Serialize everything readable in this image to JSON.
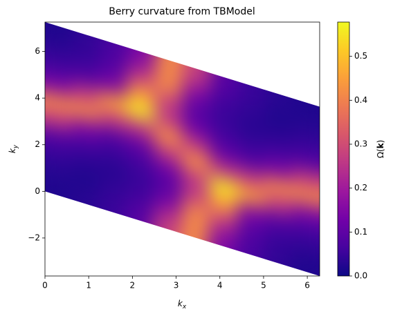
{
  "chart_data": {
    "type": "heatmap",
    "title": "Berry curvature from TBModel",
    "xlabel": [
      "k",
      "x"
    ],
    "ylabel": [
      "k",
      "y"
    ],
    "colorbar_label": [
      "Ω(",
      "k",
      ")"
    ],
    "origin": [
      0,
      0
    ],
    "b1": [
      6.283,
      -3.63
    ],
    "b2": [
      0,
      7.26
    ],
    "z": [
      [
        0.02,
        0.03,
        0.05,
        0.09,
        0.27,
        0.41,
        0.15,
        0.07,
        0.04,
        0.02
      ],
      [
        0.03,
        0.02,
        0.04,
        0.06,
        0.15,
        0.41,
        0.27,
        0.09,
        0.05,
        0.04
      ],
      [
        0.05,
        0.035,
        0.03,
        0.05,
        0.09,
        0.27,
        0.45,
        0.15,
        0.09,
        0.065
      ],
      [
        0.09,
        0.065,
        0.05,
        0.065,
        0.12,
        0.26,
        0.56,
        0.45,
        0.27,
        0.15
      ],
      [
        0.27,
        0.15,
        0.09,
        0.11,
        0.26,
        0.43,
        0.26,
        0.27,
        0.41,
        0.41
      ],
      [
        0.41,
        0.41,
        0.27,
        0.26,
        0.43,
        0.26,
        0.11,
        0.09,
        0.15,
        0.27
      ],
      [
        0.15,
        0.27,
        0.45,
        0.56,
        0.26,
        0.12,
        0.065,
        0.05,
        0.065,
        0.09
      ],
      [
        0.065,
        0.09,
        0.15,
        0.45,
        0.27,
        0.09,
        0.05,
        0.03,
        0.035,
        0.05
      ],
      [
        0.04,
        0.05,
        0.09,
        0.27,
        0.41,
        0.15,
        0.06,
        0.04,
        0.02,
        0.03
      ],
      [
        0.02,
        0.04,
        0.07,
        0.15,
        0.41,
        0.27,
        0.09,
        0.05,
        0.03,
        0.02
      ]
    ],
    "colormap": [
      "#0d0887",
      "#46039f",
      "#7201a8",
      "#9c179e",
      "#bd3786",
      "#d8576b",
      "#ed7953",
      "#fb9f3a",
      "#fdca26",
      "#f0f921"
    ],
    "clim": [
      0,
      0.578
    ],
    "cticks": [
      {
        "value": 0,
        "label": "0.0"
      },
      0.1,
      0.2,
      0.3,
      0.4,
      0.5
    ],
    "xlim": [
      0,
      6.283
    ],
    "ylim": [
      -3.63,
      7.26
    ],
    "xticks": [
      0,
      1,
      2,
      3,
      4,
      5,
      6
    ],
    "yticks": [
      {
        "value": -2,
        "label": "−2"
      },
      0,
      2,
      4,
      6
    ]
  }
}
